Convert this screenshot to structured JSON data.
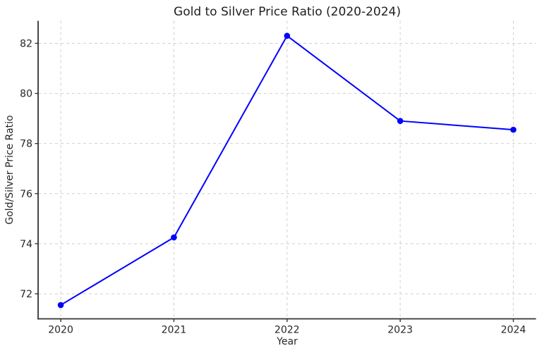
{
  "figure": {
    "background": "#ffffff"
  },
  "chart_data": {
    "type": "line",
    "title": "Gold to Silver Price Ratio (2020-2024)",
    "xlabel": "Year",
    "ylabel": "Gold/Silver Price Ratio",
    "x": [
      2020,
      2021,
      2022,
      2023,
      2024
    ],
    "y": [
      71.55,
      74.25,
      82.3,
      78.9,
      78.55
    ],
    "xticks": {
      "values": [
        2020,
        2021,
        2022,
        2023,
        2024
      ],
      "labels": [
        "2020",
        "2021",
        "2022",
        "2023",
        "2024"
      ]
    },
    "yticks": {
      "values": [
        72,
        74,
        76,
        78,
        80,
        82
      ],
      "labels": [
        "72",
        "74",
        "76",
        "78",
        "80",
        "82"
      ]
    },
    "xlim": [
      2019.8,
      2024.2
    ],
    "ylim": [
      71.0,
      82.9
    ],
    "grid": true,
    "grid_style": "dashed",
    "legend": false,
    "style": {
      "line_color": "#0000ff",
      "marker": "circle",
      "grid_color": "#cfcfcf",
      "spine_color": "#333333",
      "text_color": "#262626",
      "background": "#ffffff"
    }
  }
}
